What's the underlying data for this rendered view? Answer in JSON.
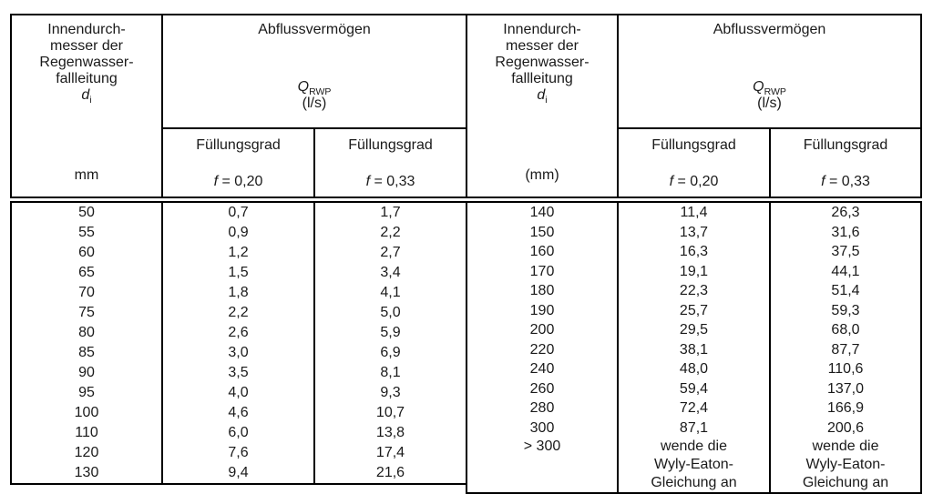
{
  "colors": {
    "border": "#000000",
    "text": "#1a1a1a",
    "background": "#ffffff"
  },
  "header": {
    "diameter_title_lines": [
      "Innendurch-",
      "messer der",
      "Regenwasser-",
      "fallleitung"
    ],
    "diameter_symbol": "d",
    "diameter_symbol_sub": "i",
    "capacity_title": "Abflussvermögen",
    "capacity_symbol": "Q",
    "capacity_symbol_sub": "RWP",
    "capacity_unit": "(l/s)",
    "fill_label": "Füllungsgrad",
    "fill_symbol": "f",
    "fill_value_020": " = 0,20",
    "fill_value_033": " = 0,33"
  },
  "left_table": {
    "diameter_unit": "mm",
    "rows": [
      [
        "50",
        "0,7",
        "1,7"
      ],
      [
        "55",
        "0,9",
        "2,2"
      ],
      [
        "60",
        "1,2",
        "2,7"
      ],
      [
        "65",
        "1,5",
        "3,4"
      ],
      [
        "70",
        "1,8",
        "4,1"
      ],
      [
        "75",
        "2,2",
        "5,0"
      ],
      [
        "80",
        "2,6",
        "5,9"
      ],
      [
        "85",
        "3,0",
        "6,9"
      ],
      [
        "90",
        "3,5",
        "8,1"
      ],
      [
        "95",
        "4,0",
        "9,3"
      ],
      [
        "100",
        "4,6",
        "10,7"
      ],
      [
        "110",
        "6,0",
        "13,8"
      ],
      [
        "120",
        "7,6",
        "17,4"
      ],
      [
        "130",
        "9,4",
        "21,6"
      ]
    ]
  },
  "right_table": {
    "diameter_unit": "(mm)",
    "rows": [
      [
        "140",
        "11,4",
        "26,3"
      ],
      [
        "150",
        "13,7",
        "31,6"
      ],
      [
        "160",
        "16,3",
        "37,5"
      ],
      [
        "170",
        "19,1",
        "44,1"
      ],
      [
        "180",
        "22,3",
        "51,4"
      ],
      [
        "190",
        "25,7",
        "59,3"
      ],
      [
        "200",
        "29,5",
        "68,0"
      ],
      [
        "220",
        "38,1",
        "87,7"
      ],
      [
        "240",
        "48,0",
        "110,6"
      ],
      [
        "260",
        "59,4",
        "137,0"
      ],
      [
        "280",
        "72,4",
        "166,9"
      ],
      [
        "300",
        "87,1",
        "200,6"
      ]
    ],
    "over_row": {
      "label": "> 300",
      "note_lines": [
        "wende die",
        "Wyly-Eaton-",
        "Gleichung an"
      ]
    }
  }
}
